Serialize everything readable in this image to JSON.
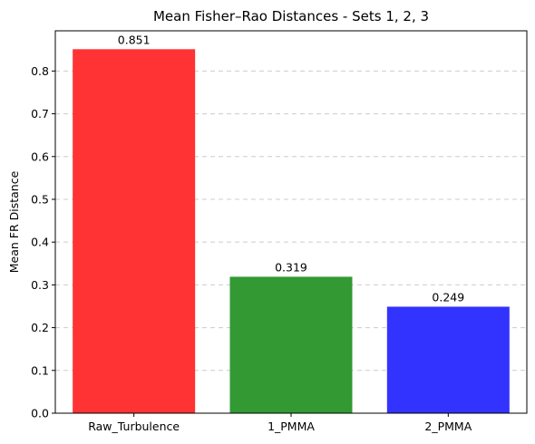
{
  "chart_data": {
    "type": "bar",
    "title": "Mean Fisher–Rao Distances - Sets 1, 2, 3",
    "xlabel": "",
    "ylabel": "Mean FR Distance",
    "categories": [
      "Raw_Turbulence",
      "1_PMMA",
      "2_PMMA"
    ],
    "values": [
      0.851,
      0.319,
      0.249
    ],
    "value_labels": [
      "0.851",
      "0.319",
      "0.249"
    ],
    "colors": [
      "#ff3333",
      "#339933",
      "#3333ff"
    ],
    "ylim": [
      0,
      0.894
    ],
    "yticks": [
      0.0,
      0.1,
      0.2,
      0.3,
      0.4,
      0.5,
      0.6,
      0.7,
      0.8
    ],
    "ytick_labels": [
      "0.0",
      "0.1",
      "0.2",
      "0.3",
      "0.4",
      "0.5",
      "0.6",
      "0.7",
      "0.8"
    ],
    "grid": "y-dashed",
    "legend": "none"
  }
}
